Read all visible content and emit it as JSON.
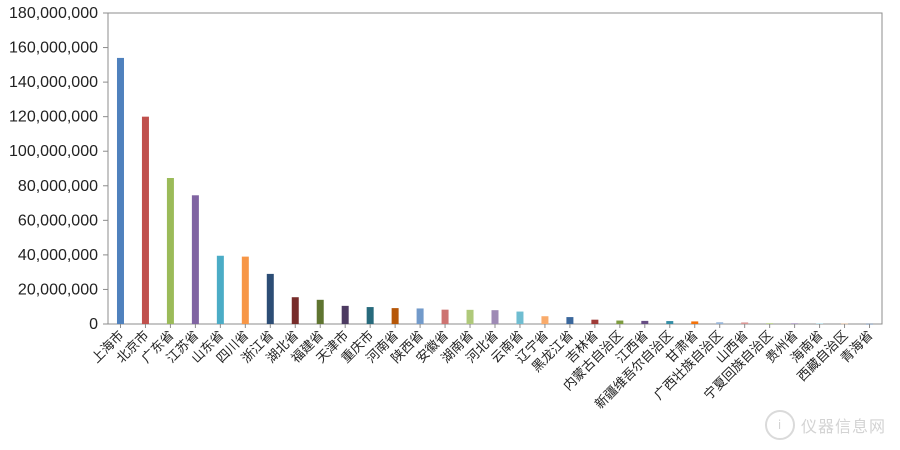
{
  "chart_data": {
    "type": "bar",
    "categories": [
      "上海市",
      "北京市",
      "广东省",
      "江苏省",
      "山东省",
      "四川省",
      "浙江省",
      "湖北省",
      "福建省",
      "天津市",
      "重庆市",
      "河南省",
      "陕西省",
      "安徽省",
      "湖南省",
      "河北省",
      "云南省",
      "辽宁省",
      "黑龙江省",
      "吉林省",
      "内蒙古自治区",
      "江西省",
      "新疆维吾尔自治区",
      "甘肃省",
      "广西壮族自治区",
      "山西省",
      "宁夏回族自治区",
      "贵州省",
      "海南省",
      "西藏自治区",
      "青海省"
    ],
    "values": [
      154000000,
      120000000,
      84500000,
      74500000,
      39500000,
      39000000,
      29000000,
      15500000,
      14000000,
      10500000,
      9800000,
      9200000,
      9000000,
      8300000,
      8200000,
      8000000,
      7200000,
      4500000,
      4000000,
      2500000,
      2000000,
      1800000,
      1700000,
      1500000,
      1000000,
      900000,
      600000,
      500000,
      300000,
      200000,
      100000
    ],
    "colors": [
      "#4F81BD",
      "#C0504D",
      "#9BBB59",
      "#8064A2",
      "#4BACC6",
      "#F79646",
      "#2C4D75",
      "#772C2A",
      "#5F7530",
      "#4D3B62",
      "#276A7C",
      "#B65708",
      "#729ACA",
      "#CD7371",
      "#AFC97A",
      "#9E8AB5",
      "#6FBDD1",
      "#F9AB6B",
      "#3A679C",
      "#9F3B38",
      "#7E9C40",
      "#674E84",
      "#358EA6",
      "#F3720A",
      "#95B3D7",
      "#D99694",
      "#C3D69B",
      "#B2A2C7",
      "#93CDDD",
      "#FAC090",
      "#4F81BD"
    ],
    "ylim": [
      0,
      180000000
    ],
    "yticks": [
      "0",
      "20,000,000",
      "40,000,000",
      "60,000,000",
      "80,000,000",
      "100,000,000",
      "120,000,000",
      "140,000,000",
      "160,000,000",
      "180,000,000"
    ],
    "grid": false,
    "legend": "none"
  },
  "watermark": {
    "text": "仪器信息网",
    "mark": "i"
  }
}
